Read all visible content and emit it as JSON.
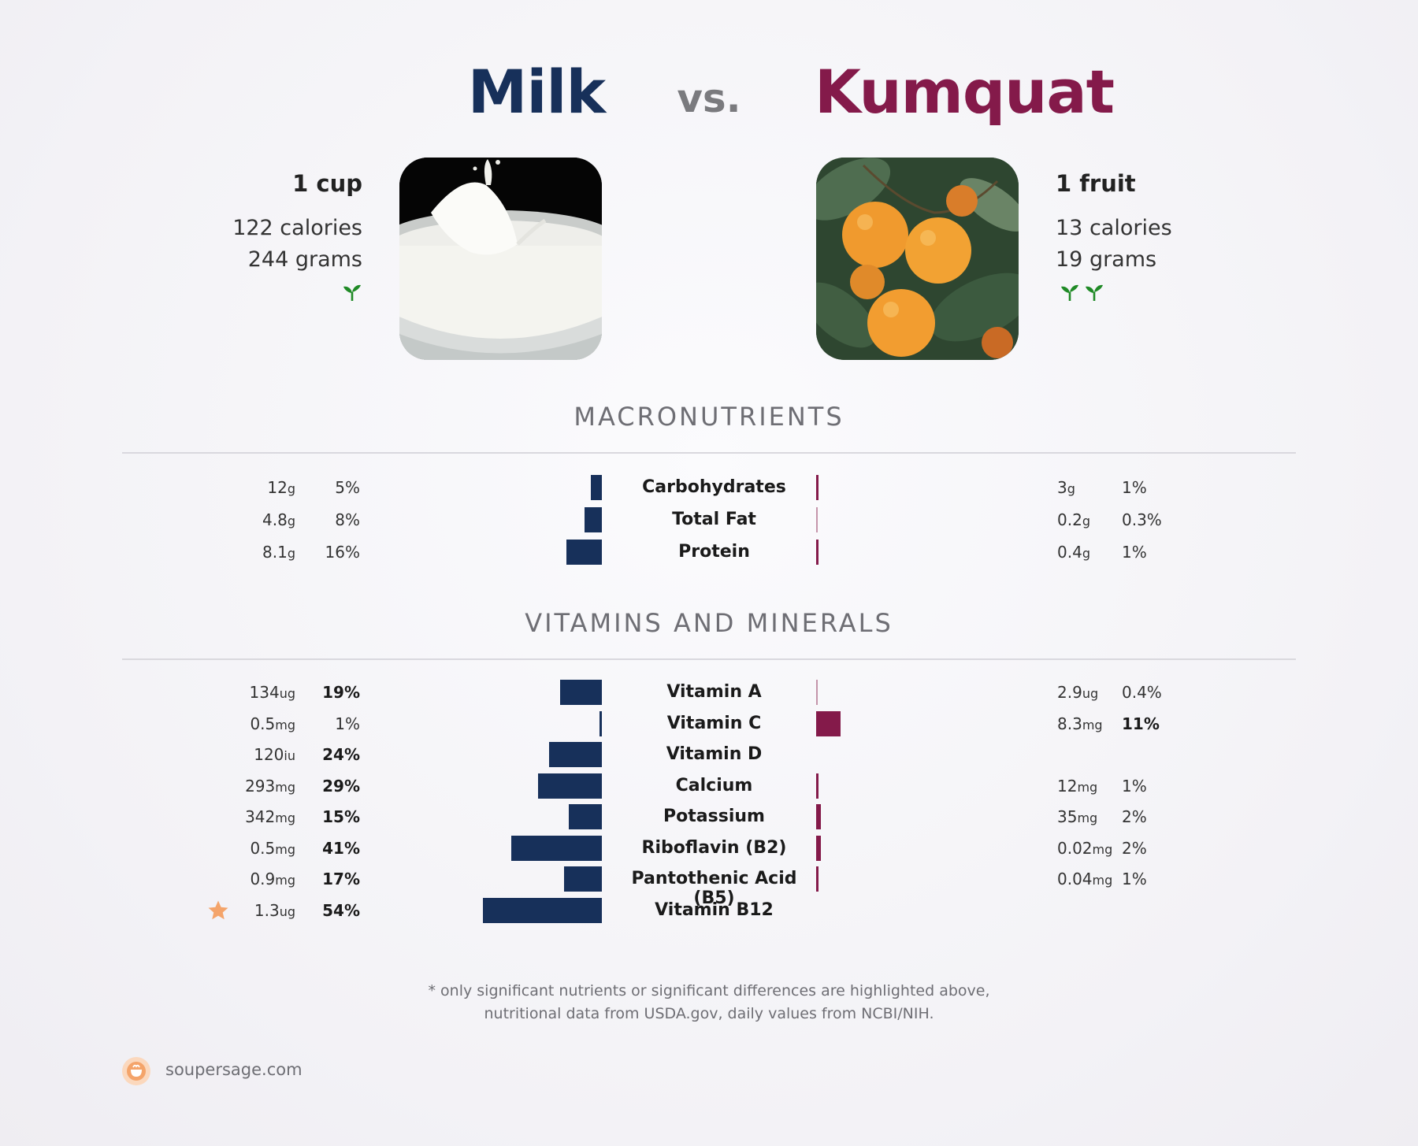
{
  "header": {
    "left_name": "Milk",
    "vs": "vs.",
    "right_name": "Kumquat"
  },
  "left_food": {
    "serving": "1 cup",
    "calories": "122 calories",
    "grams": "244 grams",
    "leaf_count": 1,
    "image": "milk-splash-photo"
  },
  "right_food": {
    "serving": "1 fruit",
    "calories": "13 calories",
    "grams": "19 grams",
    "leaf_count": 2,
    "image": "kumquat-fruit-photo"
  },
  "sections": {
    "macros_title": "MACRONUTRIENTS",
    "vitamins_title": "VITAMINS AND MINERALS"
  },
  "colors": {
    "left": "#17305a",
    "right": "#841a4a",
    "star": "#f4a46a",
    "leaf": "#1f8a26"
  },
  "chart_data": [
    {
      "type": "bar",
      "title": "MACRONUTRIENTS",
      "categories": [
        "Carbohydrates",
        "Total Fat",
        "Protein"
      ],
      "series": [
        {
          "name": "Milk",
          "amounts": [
            "12",
            "4.8",
            "8.1"
          ],
          "units": [
            "g",
            "g",
            "g"
          ],
          "pct_labels": [
            "5%",
            "8%",
            "16%"
          ],
          "values": [
            5,
            8,
            16
          ],
          "bold": [
            false,
            false,
            false
          ]
        },
        {
          "name": "Kumquat",
          "amounts": [
            "3",
            "0.2",
            "0.4"
          ],
          "units": [
            "g",
            "g",
            "g"
          ],
          "pct_labels": [
            "1%",
            "0.3%",
            "1%"
          ],
          "values": [
            1,
            0.3,
            1
          ],
          "bold": [
            false,
            false,
            false
          ]
        }
      ]
    },
    {
      "type": "bar",
      "title": "VITAMINS AND MINERALS",
      "categories": [
        "Vitamin A",
        "Vitamin C",
        "Vitamin D",
        "Calcium",
        "Potassium",
        "Riboflavin (B2)",
        "Pantothenic Acid (B5)",
        "Vitamin B12"
      ],
      "series": [
        {
          "name": "Milk",
          "amounts": [
            "134",
            "0.5",
            "120",
            "293",
            "342",
            "0.5",
            "0.9",
            "1.3"
          ],
          "units": [
            "ug",
            "mg",
            "iu",
            "mg",
            "mg",
            "mg",
            "mg",
            "ug"
          ],
          "pct_labels": [
            "19%",
            "1%",
            "24%",
            "29%",
            "15%",
            "41%",
            "17%",
            "54%"
          ],
          "values": [
            19,
            1,
            24,
            29,
            15,
            41,
            17,
            54
          ],
          "bold": [
            true,
            false,
            true,
            true,
            true,
            true,
            true,
            true
          ],
          "star": [
            false,
            false,
            false,
            false,
            false,
            false,
            false,
            true
          ]
        },
        {
          "name": "Kumquat",
          "amounts": [
            "2.9",
            "8.3",
            null,
            "12",
            "35",
            "0.02",
            "0.04",
            null
          ],
          "units": [
            "ug",
            "mg",
            null,
            "mg",
            "mg",
            "mg",
            "mg",
            null
          ],
          "pct_labels": [
            "0.4%",
            "11%",
            null,
            "1%",
            "2%",
            "2%",
            "1%",
            null
          ],
          "values": [
            0.4,
            11,
            null,
            1,
            2,
            2,
            1,
            null
          ],
          "bold": [
            false,
            true,
            false,
            false,
            false,
            false,
            false,
            false
          ]
        }
      ]
    }
  ],
  "footer": {
    "note_line1": "* only significant nutrients or significant differences are highlighted above,",
    "note_line2": "nutritional data from USDA.gov, daily values from NCBI/NIH.",
    "brand": "soupersage.com"
  }
}
